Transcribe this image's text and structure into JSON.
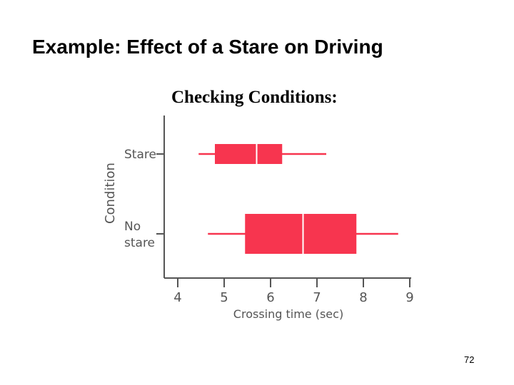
{
  "slide": {
    "title": "Example: Effect of a Stare on Driving",
    "page_number": "72"
  },
  "chart_data": {
    "type": "boxplot",
    "title": "Checking Conditions:",
    "xlabel": "Crossing time (sec)",
    "ylabel": "Condition",
    "xlim": [
      4,
      9
    ],
    "xticks": [
      "4",
      "5",
      "6",
      "7",
      "8",
      "9"
    ],
    "categories": [
      {
        "label_lines": [
          "Stare"
        ]
      },
      {
        "label_lines": [
          "No",
          "stare"
        ]
      }
    ],
    "boxes": [
      {
        "whisker_low": 4.45,
        "q1": 4.8,
        "median": 5.7,
        "q3": 6.25,
        "whisker_high": 7.2
      },
      {
        "whisker_low": 4.65,
        "q1": 5.45,
        "median": 6.7,
        "q3": 7.85,
        "whisker_high": 8.75
      }
    ],
    "colors": {
      "box": "#f7354f",
      "axis": "#555555",
      "median": "#ffffff"
    },
    "grid": false,
    "legend": "none"
  }
}
